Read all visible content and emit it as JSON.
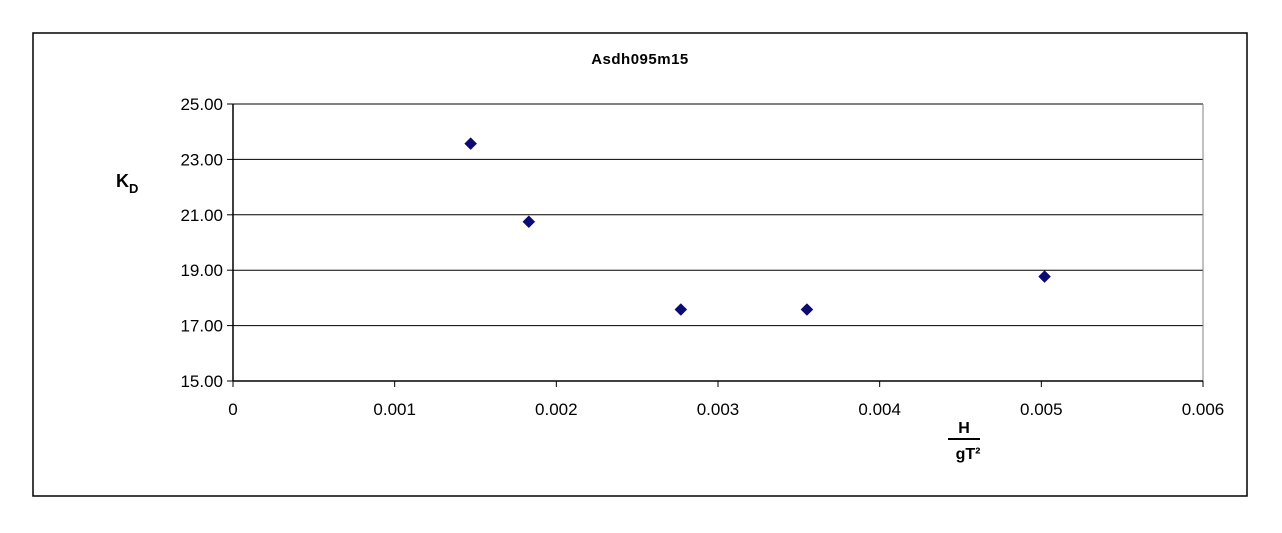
{
  "chart_data": {
    "type": "scatter",
    "title": "Asdh095m15",
    "ylabel": {
      "main": "K",
      "sub": "D"
    },
    "xlabel": {
      "numerator": "H",
      "denominator": "gT²"
    },
    "xlim": [
      0,
      0.006
    ],
    "ylim": [
      15.0,
      25.0
    ],
    "x_ticks": [
      "0",
      "0.001",
      "0.002",
      "0.003",
      "0.004",
      "0.005",
      "0.006"
    ],
    "y_ticks": [
      "15.00",
      "17.00",
      "19.00",
      "21.00",
      "23.00",
      "25.00"
    ],
    "horizontal_grid": true,
    "vertical_grid": false,
    "marker": "diamond",
    "marker_color": "#0a0a78",
    "series": [
      {
        "points": [
          {
            "x": 0.00147,
            "y": 23.57
          },
          {
            "x": 0.00183,
            "y": 20.75
          },
          {
            "x": 0.00277,
            "y": 17.58
          },
          {
            "x": 0.00355,
            "y": 17.58
          },
          {
            "x": 0.00502,
            "y": 18.77
          }
        ]
      }
    ]
  }
}
